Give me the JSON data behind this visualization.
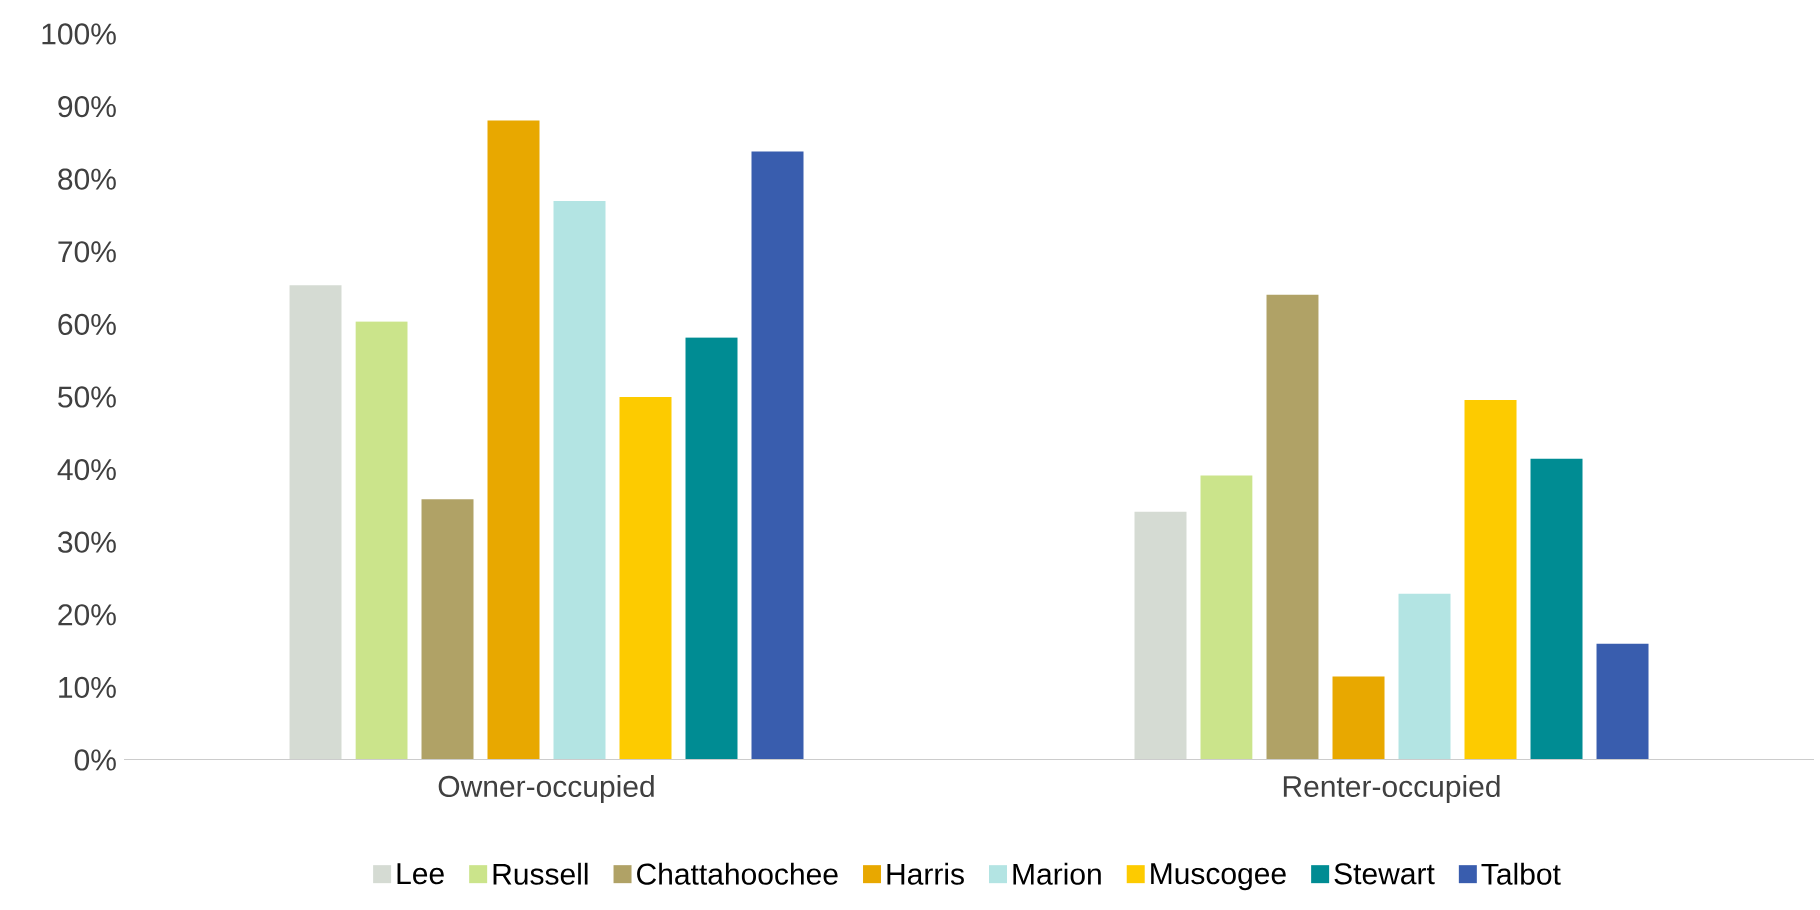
{
  "chart_data": {
    "type": "bar",
    "categories": [
      "Owner-occupied",
      "Renter-occupied"
    ],
    "series": [
      {
        "name": "Lee",
        "color": "#d5dbd3",
        "values": [
          65.4,
          34.2
        ]
      },
      {
        "name": "Russell",
        "color": "#cbe48b",
        "values": [
          60.4,
          39.2
        ]
      },
      {
        "name": "Chattahoochee",
        "color": "#b0a266",
        "values": [
          35.9,
          64.1
        ]
      },
      {
        "name": "Harris",
        "color": "#e8a800",
        "values": [
          88.1,
          11.5
        ]
      },
      {
        "name": "Marion",
        "color": "#b3e4e3",
        "values": [
          77.0,
          22.9
        ]
      },
      {
        "name": "Muscogee",
        "color": "#fdcb00",
        "values": [
          50.0,
          49.6
        ]
      },
      {
        "name": "Stewart",
        "color": "#008c93",
        "values": [
          58.2,
          41.5
        ]
      },
      {
        "name": "Talbot",
        "color": "#395dae",
        "values": [
          83.8,
          16.0
        ]
      }
    ],
    "ylim": [
      0,
      100
    ],
    "yticks": [
      {
        "value": 0,
        "label": "0%"
      },
      {
        "value": 10,
        "label": "10%"
      },
      {
        "value": 20,
        "label": "20%"
      },
      {
        "value": 30,
        "label": "30%"
      },
      {
        "value": 40,
        "label": "40%"
      },
      {
        "value": 50,
        "label": "50%"
      },
      {
        "value": 60,
        "label": "60%"
      },
      {
        "value": 70,
        "label": "70%"
      },
      {
        "value": 80,
        "label": "80%"
      },
      {
        "value": 90,
        "label": "90%"
      },
      {
        "value": 100,
        "label": "100%"
      }
    ],
    "grid": false,
    "legend": "bottom"
  }
}
